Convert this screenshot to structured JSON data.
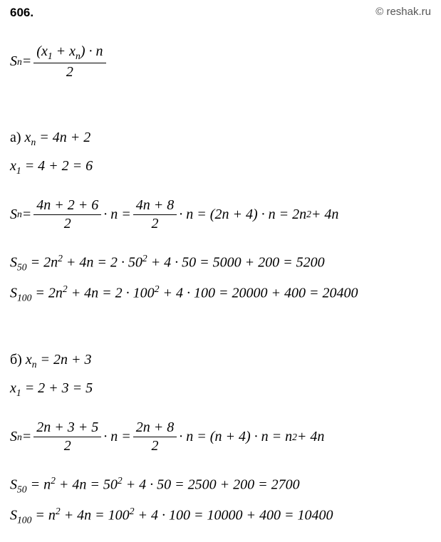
{
  "header": {
    "problem_number": "606.",
    "copyright": "© reshak.ru"
  },
  "formula_main": {
    "lhs_S": "S",
    "sub_n": "n",
    "eq": " = ",
    "num_open": "(",
    "x": "x",
    "sub_1": "1",
    "plus": " + ",
    "num_close": ")",
    "dot": " · ",
    "n": "n",
    "den_2": "2"
  },
  "part_a": {
    "label": "a)  ",
    "xn_def_pre": "x",
    "xn_def_sub": "n",
    "xn_def_rest": " = 4n + 2",
    "x1_line_pre": "x",
    "x1_line_sub": "1",
    "x1_line_rest": " = 4 + 2 = 6",
    "sn_pre": "S",
    "sn_sub": "n",
    "sn_eq": " = ",
    "sn_frac1_num": "4n + 2 + 6",
    "sn_frac_den": "2",
    "sn_mid": " · n = ",
    "sn_frac2_num": "4n + 8",
    "sn_tail_a": " · n = (2n + 4) · n = 2n",
    "sn_sup2": "2",
    "sn_tail_b": " + 4n",
    "s50_pre": "S",
    "s50_sub": "50",
    "s50_a": " = 2n",
    "s50_b": " + 4n = 2 · 50",
    "s50_c": " + 4 · 50 = 5000 + 200 = 5200",
    "s100_pre": "S",
    "s100_sub": "100",
    "s100_a": " = 2n",
    "s100_b": " + 4n = 2 · 100",
    "s100_c": " + 4 · 100 = 20000 + 400 = 20400"
  },
  "part_b": {
    "label": "б)  ",
    "xn_def_pre": "x",
    "xn_def_sub": "n",
    "xn_def_rest": " = 2n + 3",
    "x1_line_pre": "x",
    "x1_line_sub": "1",
    "x1_line_rest": " = 2 + 3 = 5",
    "sn_pre": "S",
    "sn_sub": "n",
    "sn_eq": " = ",
    "sn_frac1_num": "2n + 3 + 5",
    "sn_frac_den": "2",
    "sn_mid": " · n = ",
    "sn_frac2_num": "2n + 8",
    "sn_tail_a": " · n = (n + 4) · n = n",
    "sn_sup2": "2",
    "sn_tail_b": " + 4n",
    "s50_pre": "S",
    "s50_sub": "50",
    "s50_a": " = n",
    "s50_b": " + 4n = 50",
    "s50_c": " + 4 · 50 = 2500 + 200 = 2700",
    "s100_pre": "S",
    "s100_sub": "100",
    "s100_a": " = n",
    "s100_b": " + 4n = 100",
    "s100_c": " + 4 · 100 = 10000 + 400 = 10400"
  }
}
